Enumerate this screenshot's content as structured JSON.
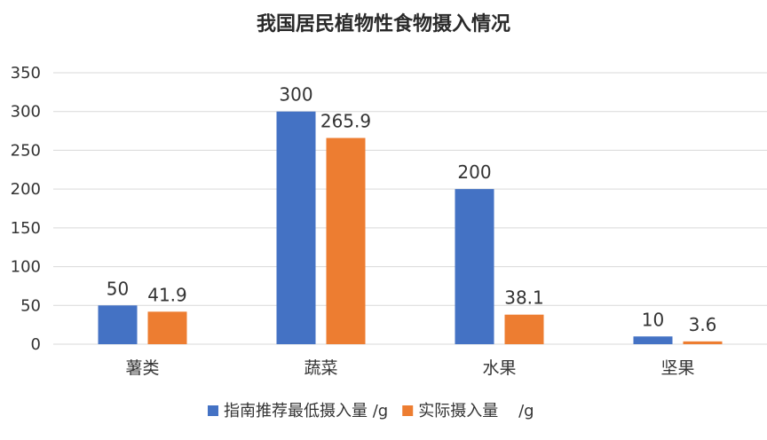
{
  "chart_data": {
    "type": "bar",
    "title": "我国居民植物性食物摄入情况",
    "xlabel": "",
    "ylabel": "",
    "categories": [
      "薯类",
      "蔬菜",
      "水果",
      "坚果"
    ],
    "series": [
      {
        "name": "指南推荐最低摄入量 /g",
        "values": [
          50,
          300,
          200,
          10
        ],
        "labels": [
          "50",
          "300",
          "200",
          "10"
        ],
        "color": "#4472C4"
      },
      {
        "name": "实际摄入量    /g",
        "values": [
          41.9,
          265.9,
          38.1,
          3.6
        ],
        "labels": [
          "41.9",
          "265.9",
          "38.1",
          "3.6"
        ],
        "color": "#ED7D31"
      }
    ],
    "ylim": [
      0,
      350
    ],
    "yticks": [
      0,
      50,
      100,
      150,
      200,
      250,
      300,
      350
    ],
    "grid": true,
    "legend_position": "bottom",
    "gridline_color": "#d9d9d9"
  }
}
